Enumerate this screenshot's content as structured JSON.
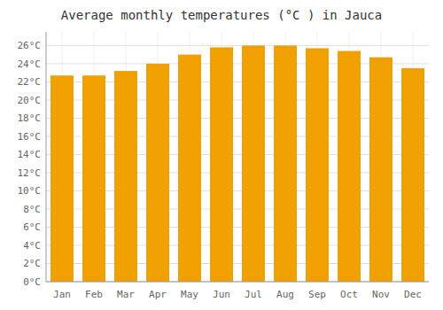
{
  "chart_data": {
    "type": "bar",
    "title": "Average monthly temperatures (°C ) in Jauca",
    "categories": [
      "Jan",
      "Feb",
      "Mar",
      "Apr",
      "May",
      "Jun",
      "Jul",
      "Aug",
      "Sep",
      "Oct",
      "Nov",
      "Dec"
    ],
    "values": [
      22.7,
      22.7,
      23.2,
      24.0,
      25.0,
      25.8,
      26.0,
      26.0,
      25.7,
      25.4,
      24.7,
      23.5
    ],
    "color": "#F0A000",
    "ylim": [
      0,
      27.5
    ],
    "yticks": [
      {
        "value": 0,
        "label": "0°C"
      },
      {
        "value": 2,
        "label": "2°C"
      },
      {
        "value": 4,
        "label": "4°C"
      },
      {
        "value": 6,
        "label": "6°C"
      },
      {
        "value": 8,
        "label": "8°C"
      },
      {
        "value": 10,
        "label": "10°C"
      },
      {
        "value": 12,
        "label": "12°C"
      },
      {
        "value": 14,
        "label": "14°C"
      },
      {
        "value": 16,
        "label": "16°C"
      },
      {
        "value": 18,
        "label": "18°C"
      },
      {
        "value": 20,
        "label": "20°C"
      },
      {
        "value": 22,
        "label": "22°C"
      },
      {
        "value": 24,
        "label": "24°C"
      },
      {
        "value": 26,
        "label": "26°C"
      }
    ],
    "grid": true
  }
}
